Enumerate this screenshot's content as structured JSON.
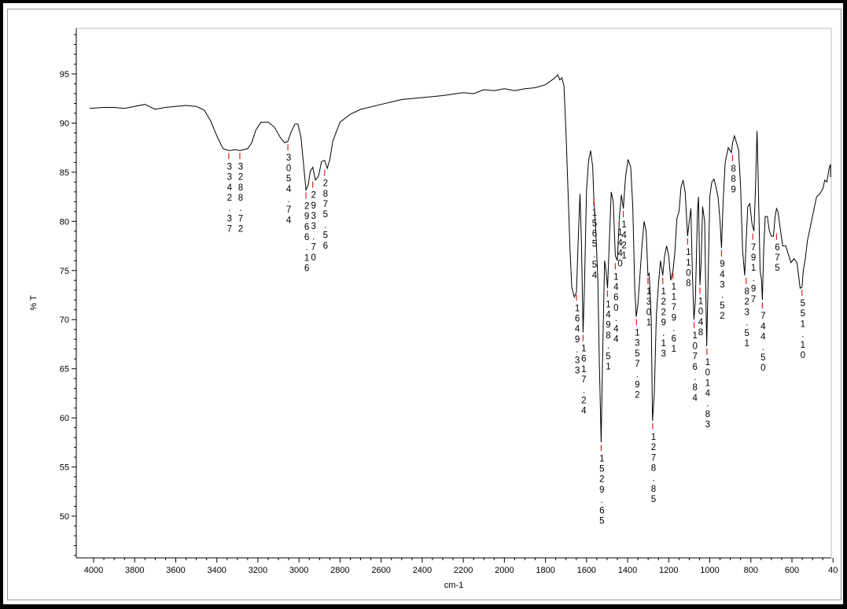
{
  "chart_data": {
    "type": "line",
    "title": "",
    "xlabel": "cm-1",
    "ylabel": "% T",
    "xlim": [
      4000,
      400
    ],
    "ylim": [
      45,
      100
    ],
    "x_reversed": true,
    "grid": false,
    "x_ticks": [
      "4000",
      "3800",
      "3600",
      "3400",
      "3200",
      "3000",
      "2800",
      "2600",
      "2400",
      "2200",
      "2000",
      "1800",
      "1600",
      "1400",
      "1200",
      "1000",
      "800",
      "600",
      "40"
    ],
    "y_ticks": [
      "95",
      "90",
      "85",
      "80",
      "75",
      "70",
      "65",
      "60",
      "55",
      "50"
    ],
    "series": [
      {
        "points": [
          [
            4020,
            91.5
          ],
          [
            3950,
            91.6
          ],
          [
            3900,
            91.6
          ],
          [
            3850,
            91.5
          ],
          [
            3800,
            91.7
          ],
          [
            3750,
            91.9
          ],
          [
            3700,
            91.4
          ],
          [
            3650,
            91.6
          ],
          [
            3600,
            91.7
          ],
          [
            3550,
            91.8
          ],
          [
            3500,
            91.7
          ],
          [
            3460,
            91.3
          ],
          [
            3430,
            90.2
          ],
          [
            3400,
            88.7
          ],
          [
            3370,
            87.4
          ],
          [
            3342,
            87.2
          ],
          [
            3310,
            87.3
          ],
          [
            3288,
            87.2
          ],
          [
            3250,
            87.4
          ],
          [
            3230,
            88.0
          ],
          [
            3210,
            89.3
          ],
          [
            3185,
            90.1
          ],
          [
            3150,
            90.1
          ],
          [
            3120,
            89.6
          ],
          [
            3090,
            88.5
          ],
          [
            3070,
            88.0
          ],
          [
            3055,
            88.1
          ],
          [
            3040,
            89.0
          ],
          [
            3020,
            89.9
          ],
          [
            3005,
            89.9
          ],
          [
            2990,
            88.5
          ],
          [
            2975,
            85.2
          ],
          [
            2966,
            83.2
          ],
          [
            2955,
            83.7
          ],
          [
            2945,
            85.1
          ],
          [
            2933,
            85.5
          ],
          [
            2920,
            84.2
          ],
          [
            2905,
            84.6
          ],
          [
            2890,
            86.1
          ],
          [
            2875,
            86.2
          ],
          [
            2862,
            85.4
          ],
          [
            2850,
            86.3
          ],
          [
            2835,
            88.2
          ],
          [
            2800,
            90.1
          ],
          [
            2750,
            90.9
          ],
          [
            2700,
            91.4
          ],
          [
            2600,
            91.9
          ],
          [
            2500,
            92.4
          ],
          [
            2400,
            92.6
          ],
          [
            2300,
            92.8
          ],
          [
            2200,
            93.1
          ],
          [
            2150,
            93.0
          ],
          [
            2100,
            93.4
          ],
          [
            2050,
            93.3
          ],
          [
            2000,
            93.5
          ],
          [
            1950,
            93.3
          ],
          [
            1900,
            93.5
          ],
          [
            1850,
            93.6
          ],
          [
            1800,
            93.9
          ],
          [
            1760,
            94.5
          ],
          [
            1740,
            94.9
          ],
          [
            1730,
            94.4
          ],
          [
            1720,
            94.6
          ],
          [
            1710,
            93.8
          ],
          [
            1700,
            89.0
          ],
          [
            1690,
            83.0
          ],
          [
            1680,
            77.0
          ],
          [
            1672,
            73.3
          ],
          [
            1660,
            72.3
          ],
          [
            1649,
            72.8
          ],
          [
            1640,
            78.5
          ],
          [
            1632,
            82.8
          ],
          [
            1625,
            78.0
          ],
          [
            1617,
            68.7
          ],
          [
            1610,
            73.5
          ],
          [
            1600,
            83.2
          ],
          [
            1590,
            86.2
          ],
          [
            1580,
            87.2
          ],
          [
            1570,
            85.5
          ],
          [
            1565,
            82.5
          ],
          [
            1555,
            79.0
          ],
          [
            1545,
            74.0
          ],
          [
            1538,
            66.0
          ],
          [
            1529,
            57.5
          ],
          [
            1522,
            66.0
          ],
          [
            1512,
            76.0
          ],
          [
            1505,
            75.0
          ],
          [
            1498,
            73.2
          ],
          [
            1490,
            77.5
          ],
          [
            1480,
            83.0
          ],
          [
            1470,
            82.0
          ],
          [
            1460,
            76.5
          ],
          [
            1450,
            76.0
          ],
          [
            1440,
            80.5
          ],
          [
            1430,
            82.7
          ],
          [
            1421,
            81.3
          ],
          [
            1410,
            84.5
          ],
          [
            1398,
            86.3
          ],
          [
            1385,
            85.5
          ],
          [
            1375,
            81.5
          ],
          [
            1365,
            73.0
          ],
          [
            1358,
            70.3
          ],
          [
            1350,
            71.5
          ],
          [
            1340,
            74.5
          ],
          [
            1330,
            77.5
          ],
          [
            1320,
            80.0
          ],
          [
            1310,
            79.0
          ],
          [
            1301,
            74.5
          ],
          [
            1295,
            74.7
          ],
          [
            1285,
            70.0
          ],
          [
            1279,
            59.7
          ],
          [
            1270,
            62.5
          ],
          [
            1260,
            70.5
          ],
          [
            1250,
            73.5
          ],
          [
            1240,
            76.0
          ],
          [
            1229,
            74.5
          ],
          [
            1220,
            76.5
          ],
          [
            1210,
            77.5
          ],
          [
            1200,
            76.5
          ],
          [
            1190,
            74.0
          ],
          [
            1179,
            75.0
          ],
          [
            1170,
            76.8
          ],
          [
            1160,
            80.3
          ],
          [
            1150,
            81.0
          ],
          [
            1140,
            83.5
          ],
          [
            1130,
            84.2
          ],
          [
            1120,
            83.0
          ],
          [
            1108,
            78.5
          ],
          [
            1100,
            80.0
          ],
          [
            1092,
            81.3
          ],
          [
            1085,
            75.0
          ],
          [
            1077,
            70.0
          ],
          [
            1070,
            72.0
          ],
          [
            1060,
            81.0
          ],
          [
            1055,
            82.5
          ],
          [
            1048,
            73.5
          ],
          [
            1042,
            76.0
          ],
          [
            1035,
            81.5
          ],
          [
            1025,
            80.0
          ],
          [
            1015,
            67.3
          ],
          [
            1010,
            72.0
          ],
          [
            1000,
            82.5
          ],
          [
            990,
            84.0
          ],
          [
            980,
            84.3
          ],
          [
            970,
            83.5
          ],
          [
            960,
            82.5
          ],
          [
            950,
            80.0
          ],
          [
            943,
            77.3
          ],
          [
            935,
            82.0
          ],
          [
            925,
            86.0
          ],
          [
            910,
            87.5
          ],
          [
            895,
            87.0
          ],
          [
            889,
            88.0
          ],
          [
            880,
            88.7
          ],
          [
            870,
            88.0
          ],
          [
            860,
            87.3
          ],
          [
            850,
            83.5
          ],
          [
            840,
            77.0
          ],
          [
            830,
            74.5
          ],
          [
            823,
            78.0
          ],
          [
            815,
            81.5
          ],
          [
            805,
            81.8
          ],
          [
            795,
            79.8
          ],
          [
            785,
            79.0
          ],
          [
            778,
            83.0
          ],
          [
            770,
            89.2
          ],
          [
            765,
            85.0
          ],
          [
            755,
            75.0
          ],
          [
            748,
            74.0
          ],
          [
            744,
            72.0
          ],
          [
            738,
            77.0
          ],
          [
            730,
            80.5
          ],
          [
            720,
            80.5
          ],
          [
            710,
            79.0
          ],
          [
            700,
            78.5
          ],
          [
            690,
            78.5
          ],
          [
            682,
            80.5
          ],
          [
            675,
            81.3
          ],
          [
            668,
            81.0
          ],
          [
            655,
            79.0
          ],
          [
            645,
            77.5
          ],
          [
            630,
            77.5
          ],
          [
            620,
            76.8
          ],
          [
            605,
            75.8
          ],
          [
            590,
            76.2
          ],
          [
            575,
            75.8
          ],
          [
            568,
            74.5
          ],
          [
            560,
            73.2
          ],
          [
            551,
            73.3
          ],
          [
            545,
            75.0
          ],
          [
            535,
            76.2
          ],
          [
            525,
            78.0
          ],
          [
            510,
            79.5
          ],
          [
            495,
            81.0
          ],
          [
            480,
            82.5
          ],
          [
            465,
            82.8
          ],
          [
            450,
            83.3
          ],
          [
            440,
            84.2
          ],
          [
            430,
            84.0
          ],
          [
            420,
            85.3
          ],
          [
            410,
            85.8
          ],
          [
            402,
            84.5
          ]
        ]
      }
    ],
    "peak_labels": [
      {
        "text": "3342.37",
        "x": 3342,
        "y": 87.2
      },
      {
        "text": "3288.72",
        "x": 3288,
        "y": 87.2
      },
      {
        "text": "3054.74",
        "x": 3054,
        "y": 88.1
      },
      {
        "text": "2966.16",
        "x": 2966,
        "y": 83.2
      },
      {
        "text": "2933.70",
        "x": 2933,
        "y": 84.3
      },
      {
        "text": "2875.56",
        "x": 2875,
        "y": 85.5
      },
      {
        "text": "1649.33",
        "x": 1649,
        "y": 72.8
      },
      {
        "text": "1617.24",
        "x": 1617,
        "y": 68.7
      },
      {
        "text": "1565.54",
        "x": 1565,
        "y": 82.5
      },
      {
        "text": "1529.65",
        "x": 1529,
        "y": 57.5
      },
      {
        "text": "1498.51",
        "x": 1498,
        "y": 73.2
      },
      {
        "text": "1460.44",
        "x": 1460,
        "y": 76.0
      },
      {
        "text": "1440",
        "x": 1440,
        "y": 80.5
      },
      {
        "text": "1421",
        "x": 1421,
        "y": 81.3
      },
      {
        "text": "1357.92",
        "x": 1357,
        "y": 70.3
      },
      {
        "text": "1301",
        "x": 1301,
        "y": 74.5
      },
      {
        "text": "1278.85",
        "x": 1278,
        "y": 59.7
      },
      {
        "text": "1229.13",
        "x": 1229,
        "y": 74.5
      },
      {
        "text": "1179.61",
        "x": 1179,
        "y": 75.0
      },
      {
        "text": "1108",
        "x": 1108,
        "y": 78.5
      },
      {
        "text": "1076.84",
        "x": 1076,
        "y": 70.0
      },
      {
        "text": "1048",
        "x": 1048,
        "y": 73.5
      },
      {
        "text": "1014.83",
        "x": 1014,
        "y": 67.3
      },
      {
        "text": "943.52",
        "x": 943,
        "y": 77.3
      },
      {
        "text": "889",
        "x": 889,
        "y": 87.0
      },
      {
        "text": "823.51",
        "x": 823,
        "y": 74.5
      },
      {
        "text": "791.97",
        "x": 791,
        "y": 79.0
      },
      {
        "text": "744.50",
        "x": 744,
        "y": 72.0
      },
      {
        "text": "675",
        "x": 675,
        "y": 79.0
      },
      {
        "text": "551.10",
        "x": 551,
        "y": 73.3
      }
    ]
  }
}
